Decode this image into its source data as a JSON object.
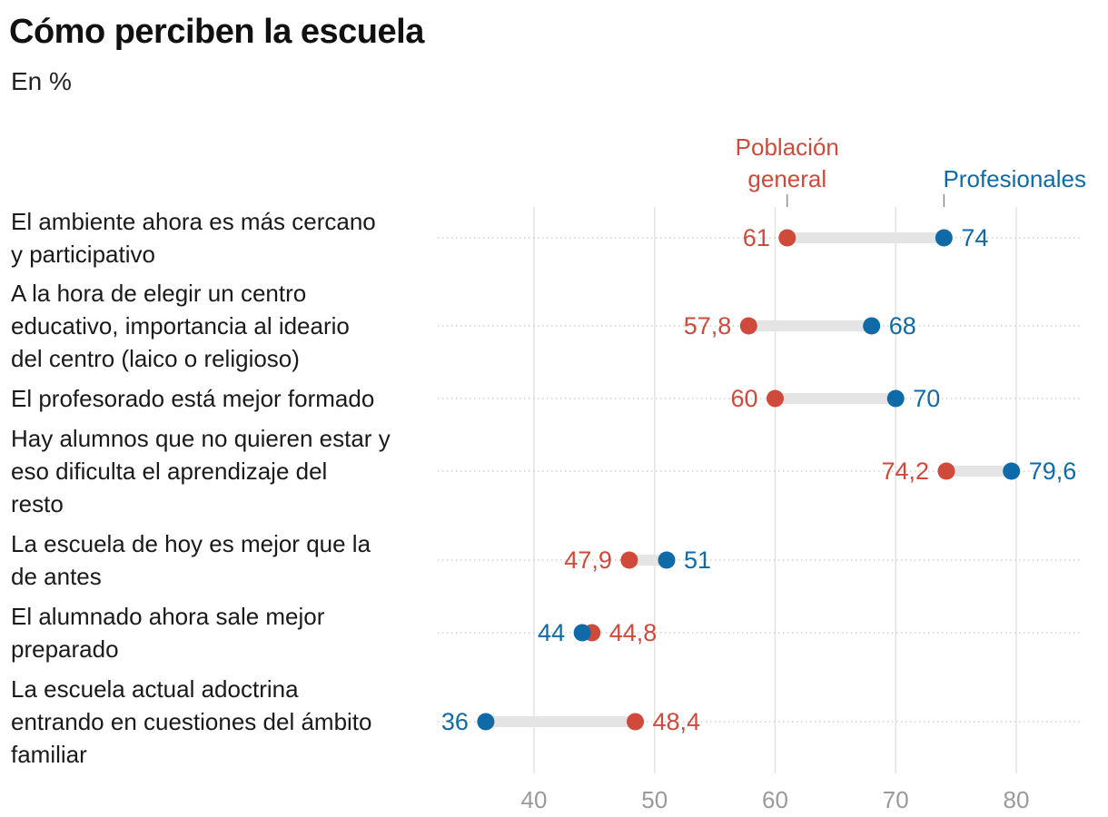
{
  "title": "Cómo perciben la escuela",
  "subtitle": "En %",
  "chart_data": {
    "type": "dot-plot",
    "title": "Cómo perciben la escuela",
    "subtitle": "En %",
    "xlim": [
      32,
      85
    ],
    "x_ticks": [
      40,
      50,
      60,
      70,
      80
    ],
    "x_tick_labels": [
      "40",
      "50",
      "60",
      "70",
      "80"
    ],
    "grid": true,
    "legend_placement": "top, above first row",
    "series": [
      {
        "name": "Población general",
        "legend_lines": [
          "Población",
          "general"
        ],
        "color": "#cf4a3a"
      },
      {
        "name": "Profesionales",
        "legend_lines": [
          "Profesionales"
        ],
        "color": "#0e6ba8"
      }
    ],
    "rows": [
      {
        "label_lines": [
          "El ambiente ahora es más cercano",
          "y participativo"
        ],
        "values": [
          61,
          74
        ],
        "value_labels": [
          "61",
          "74"
        ]
      },
      {
        "label_lines": [
          "A la hora de elegir un centro",
          "educativo, importancia al ideario",
          "del centro (laico o religioso)"
        ],
        "values": [
          57.8,
          68
        ],
        "value_labels": [
          "57,8",
          "68"
        ]
      },
      {
        "label_lines": [
          "El profesorado está mejor formado"
        ],
        "values": [
          60,
          70
        ],
        "value_labels": [
          "60",
          "70"
        ]
      },
      {
        "label_lines": [
          "Hay alumnos que no quieren estar y",
          "eso dificulta el aprendizaje del",
          "resto"
        ],
        "values": [
          74.2,
          79.6
        ],
        "value_labels": [
          "74,2",
          "79,6"
        ]
      },
      {
        "label_lines": [
          "La escuela de hoy es mejor que la",
          "de antes"
        ],
        "values": [
          47.9,
          51
        ],
        "value_labels": [
          "47,9",
          "51"
        ]
      },
      {
        "label_lines": [
          "El alumnado ahora sale mejor",
          "preparado"
        ],
        "values": [
          44.8,
          44
        ],
        "value_labels": [
          "44,8",
          "44"
        ]
      },
      {
        "label_lines": [
          "La escuela actual adoctrina",
          "entrando en cuestiones del ámbito",
          "familiar"
        ],
        "values": [
          48.4,
          36
        ],
        "value_labels": [
          "48,4",
          "36"
        ]
      }
    ]
  }
}
